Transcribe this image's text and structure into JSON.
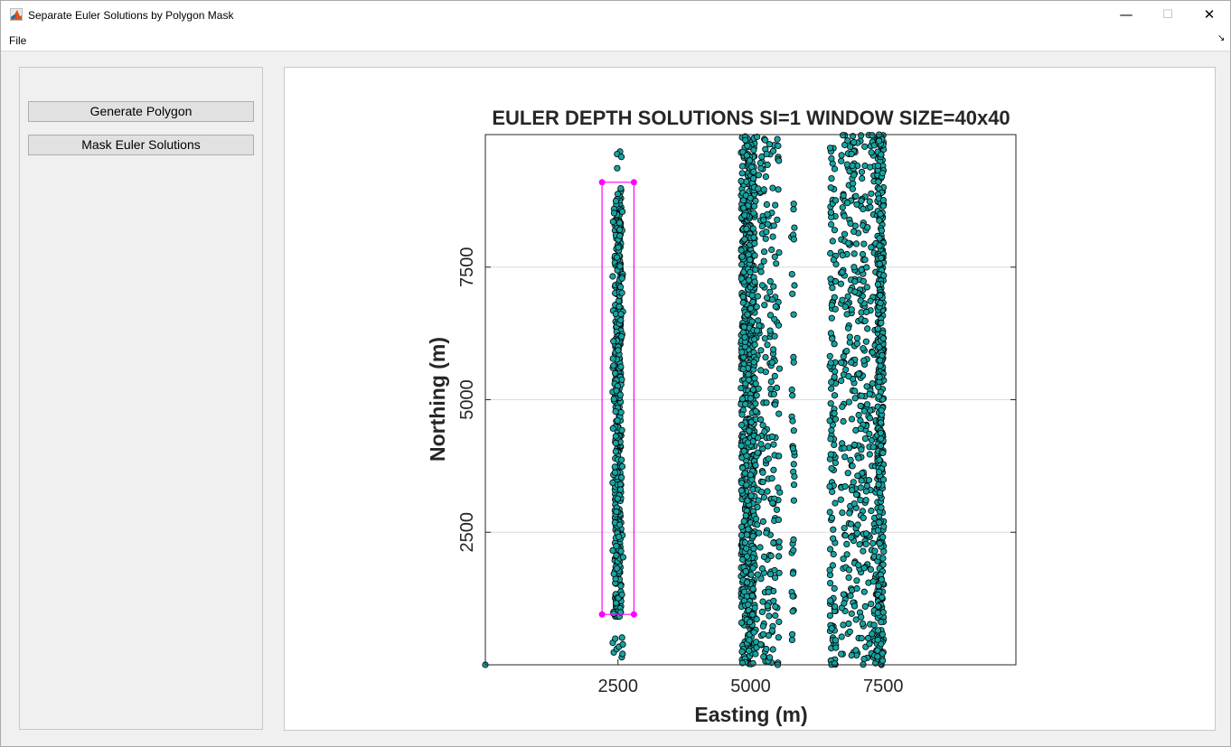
{
  "window": {
    "title": "Separate Euler Solutions by Polygon Mask",
    "controls": {
      "minimize": "—",
      "maximize": "☐",
      "close": "✕"
    }
  },
  "menu": {
    "file_label": "File",
    "expand_icon": "↘"
  },
  "buttons": {
    "generate_polygon": "Generate Polygon",
    "mask_euler": "Mask Euler Solutions"
  },
  "colors": {
    "marker_fill": "#17a3a3",
    "marker_edge": "#000000",
    "polygon": "#ff00ff",
    "grid": "#dcdcdc"
  },
  "chart_data": {
    "type": "scatter",
    "title": "EULER DEPTH SOLUTIONS SI=1 WINDOW SIZE=40x40",
    "xlabel": "Easting (m)",
    "ylabel": "Northing (m)",
    "xlim": [
      0,
      10000
    ],
    "ylim": [
      0,
      10000
    ],
    "xticks": [
      2500,
      5000,
      7500
    ],
    "yticks": [
      2500,
      5000,
      7500
    ],
    "grid": "horizontal",
    "bands": [
      {
        "x_center": 2500,
        "x_spread": 60,
        "y_range": [
          900,
          9000
        ],
        "count": 420,
        "note": "dense column"
      },
      {
        "x_center": 2500,
        "x_spread": 100,
        "y_range": [
          0,
          10000
        ],
        "count": 90,
        "note": "sparse fringe"
      },
      {
        "x_center": 4950,
        "x_spread": 130,
        "y_range": [
          0,
          10000
        ],
        "count": 700,
        "note": "dense column"
      },
      {
        "x_center": 5300,
        "x_spread": 250,
        "y_range": [
          0,
          10000
        ],
        "count": 260,
        "note": "scattered"
      },
      {
        "x_center": 5800,
        "x_spread": 30,
        "y_range": [
          300,
          9500
        ],
        "count": 40,
        "note": "sparse column"
      },
      {
        "x_center": 6550,
        "x_spread": 60,
        "y_range": [
          0,
          10000
        ],
        "count": 120,
        "note": "column"
      },
      {
        "x_center": 7050,
        "x_spread": 350,
        "y_range": [
          0,
          10000
        ],
        "count": 420,
        "note": "curved scatter"
      },
      {
        "x_center": 7450,
        "x_spread": 60,
        "y_range": [
          0,
          10000
        ],
        "count": 420,
        "note": "dense column"
      }
    ],
    "isolated_points": [
      {
        "x": 0,
        "y": 0
      }
    ],
    "polygon": {
      "vertices": [
        [
          2200,
          9100
        ],
        [
          2800,
          9100
        ],
        [
          2800,
          950
        ],
        [
          2200,
          950
        ]
      ]
    }
  }
}
